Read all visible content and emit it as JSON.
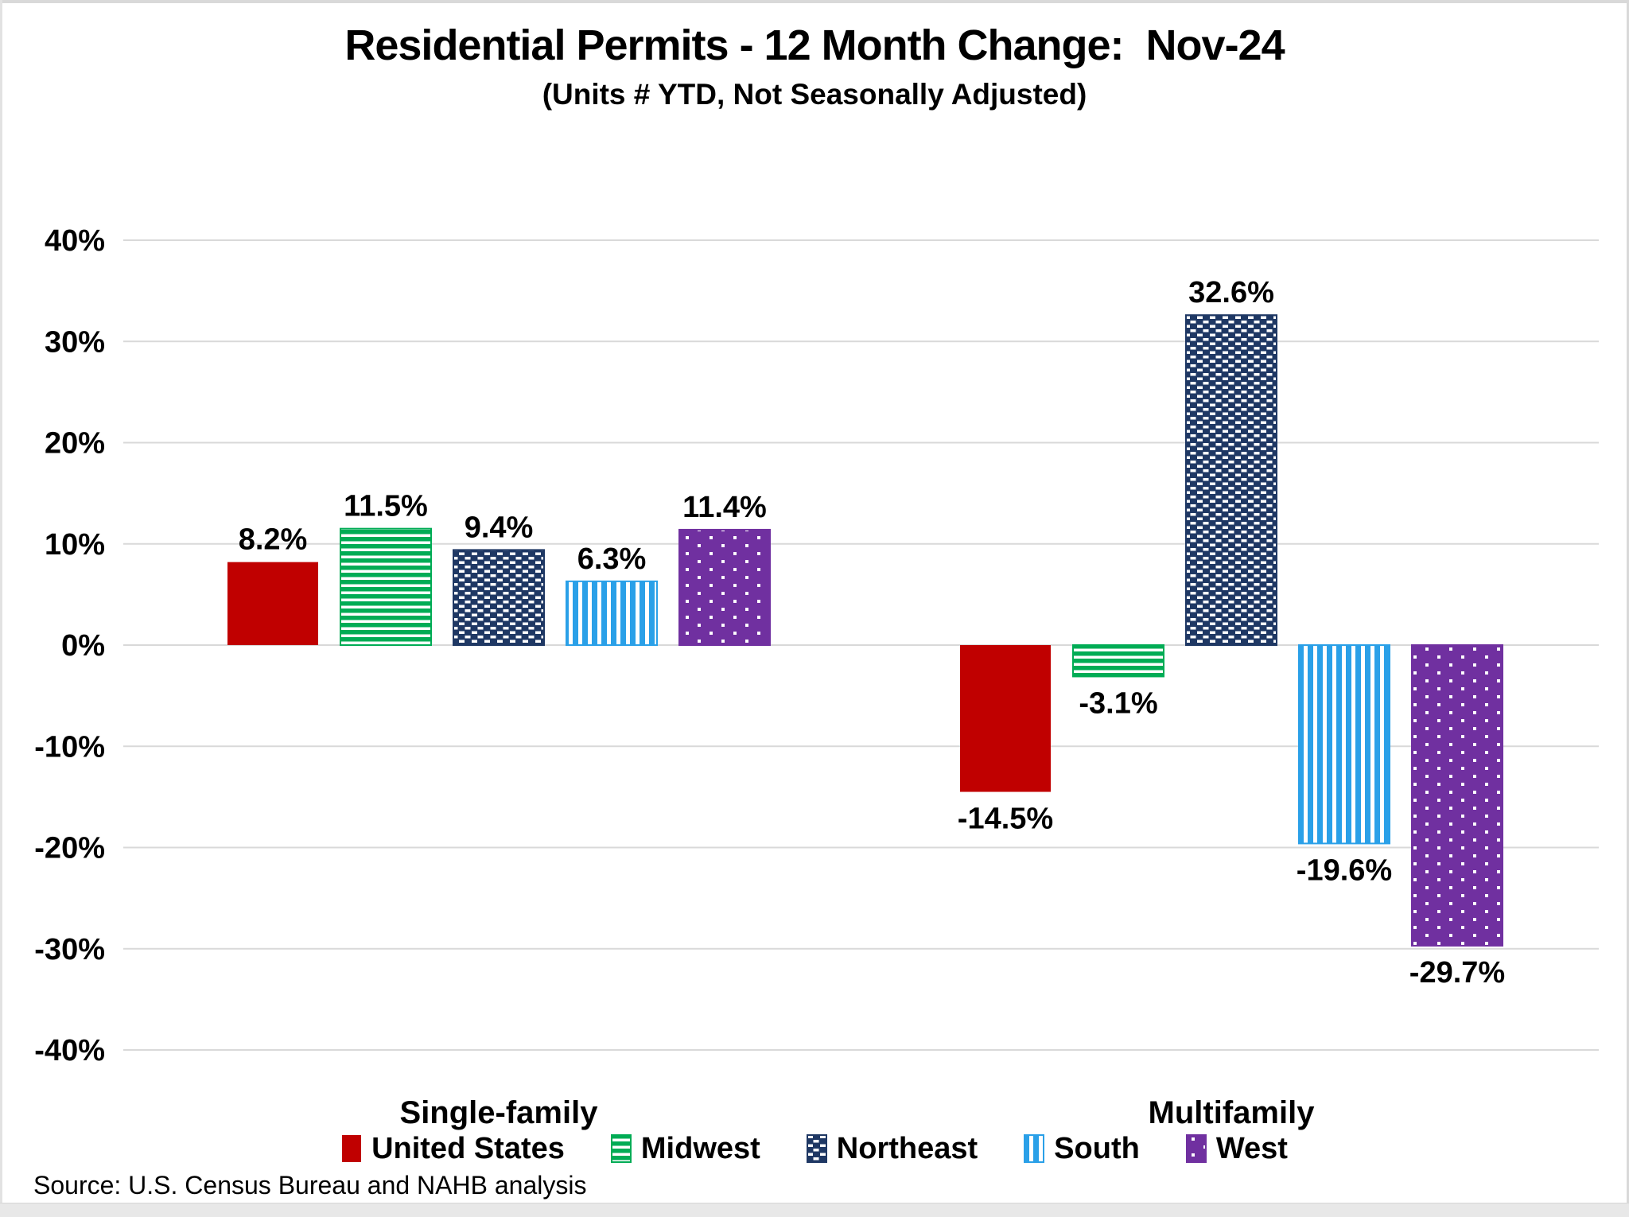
{
  "header": {
    "title": "Residential Permits - 12 Month Change:  Nov-24",
    "subtitle": "(Units # YTD, Not Seasonally Adjusted)"
  },
  "source": "Source: U.S. Census Bureau and NAHB analysis",
  "chart_data": {
    "type": "bar",
    "title": "Residential Permits - 12 Month Change:  Nov-24",
    "subtitle": "(Units # YTD, Not Seasonally Adjusted)",
    "categories": [
      "Single-family",
      "Multifamily"
    ],
    "series": [
      {
        "name": "United States",
        "color": "#C00000",
        "pattern": "solid",
        "values": [
          8.2,
          -14.5
        ]
      },
      {
        "name": "Midwest",
        "color": "#00AC55",
        "pattern": "horizontal-stripes",
        "values": [
          11.5,
          -3.1
        ]
      },
      {
        "name": "Northeast",
        "color": "#1F3864",
        "pattern": "dashed-brick",
        "values": [
          9.4,
          32.6
        ]
      },
      {
        "name": "South",
        "color": "#2AA0E8",
        "pattern": "vertical-stripes",
        "values": [
          6.3,
          -19.6
        ]
      },
      {
        "name": "West",
        "color": "#7030A0",
        "pattern": "white-dots",
        "values": [
          11.4,
          -29.7
        ]
      }
    ],
    "value_label_suffix": "%",
    "y_axis": {
      "min": -40,
      "max": 40,
      "step": 10,
      "tick_labels": [
        "40%",
        "30%",
        "20%",
        "10%",
        "0%",
        "-10%",
        "-20%",
        "-30%",
        "-40%"
      ]
    },
    "grid": true,
    "gridline_color": "#D9D9D9",
    "legend_position": "bottom",
    "ylabel": "",
    "xlabel": ""
  }
}
